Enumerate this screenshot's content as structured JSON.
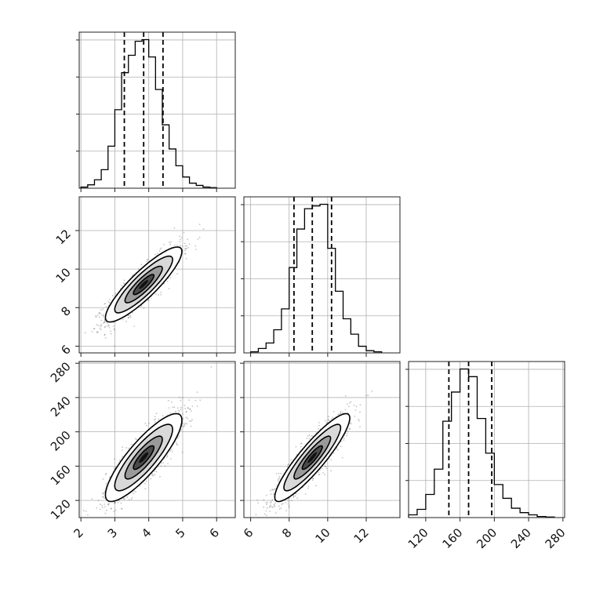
{
  "chart_data": {
    "type": "corner",
    "grid": true,
    "parameters": [
      {
        "range": [
          1.95,
          6.55
        ],
        "ticks": [
          2,
          3,
          4,
          5,
          6
        ],
        "tick_labels": [
          "2",
          "3",
          "4",
          "5",
          "6"
        ],
        "quantiles": [
          3.28,
          3.85,
          4.42
        ],
        "hist_bins": [
          2.0,
          2.2,
          2.4,
          2.6,
          2.8,
          3.0,
          3.2,
          3.4,
          3.6,
          3.8,
          4.0,
          4.2,
          4.4,
          4.6,
          4.8,
          5.0,
          5.2,
          5.4,
          5.6,
          5.8,
          6.0
        ],
        "hist_counts": [
          2,
          6,
          15,
          33,
          75,
          140,
          206,
          237,
          262,
          265,
          234,
          176,
          113,
          70,
          40,
          20,
          9,
          5,
          2,
          1
        ]
      },
      {
        "range": [
          5.65,
          13.75
        ],
        "ticks": [
          6,
          8,
          10,
          12
        ],
        "tick_labels": [
          "6",
          "8",
          "10",
          "12"
        ],
        "quantiles": [
          8.25,
          9.2,
          10.2
        ],
        "hist_bins": [
          6.0,
          6.4,
          6.8,
          7.2,
          7.6,
          8.0,
          8.4,
          8.8,
          9.2,
          9.6,
          10.0,
          10.4,
          10.8,
          11.2,
          11.6,
          12.0,
          12.4,
          12.8
        ],
        "hist_counts": [
          2,
          8,
          18,
          42,
          80,
          155,
          225,
          262,
          267,
          270,
          190,
          112,
          62,
          34,
          12,
          4,
          2
        ]
      },
      {
        "range": [
          100,
          282
        ],
        "ticks": [
          120,
          160,
          200,
          240,
          280
        ],
        "tick_labels": [
          "120",
          "160",
          "200",
          "240",
          "280"
        ],
        "quantiles": [
          147,
          170,
          197
        ],
        "hist_bins": [
          100,
          110,
          120,
          130,
          140,
          150,
          160,
          170,
          180,
          190,
          200,
          210,
          220,
          230,
          240,
          250,
          260,
          270
        ],
        "hist_counts": [
          5,
          15,
          42,
          88,
          175,
          228,
          270,
          256,
          180,
          117,
          60,
          35,
          17,
          9,
          5,
          2,
          1
        ]
      }
    ],
    "pairs": [
      {
        "row": 1,
        "col": 0,
        "center": [
          3.85,
          9.2
        ],
        "spread": [
          0.55,
          0.95
        ],
        "corr": 0.88
      },
      {
        "row": 2,
        "col": 0,
        "center": [
          3.85,
          170
        ],
        "spread": [
          0.55,
          25
        ],
        "corr": 0.85
      },
      {
        "row": 2,
        "col": 1,
        "center": [
          9.2,
          170
        ],
        "spread": [
          0.95,
          25
        ],
        "corr": 0.9
      }
    ]
  }
}
